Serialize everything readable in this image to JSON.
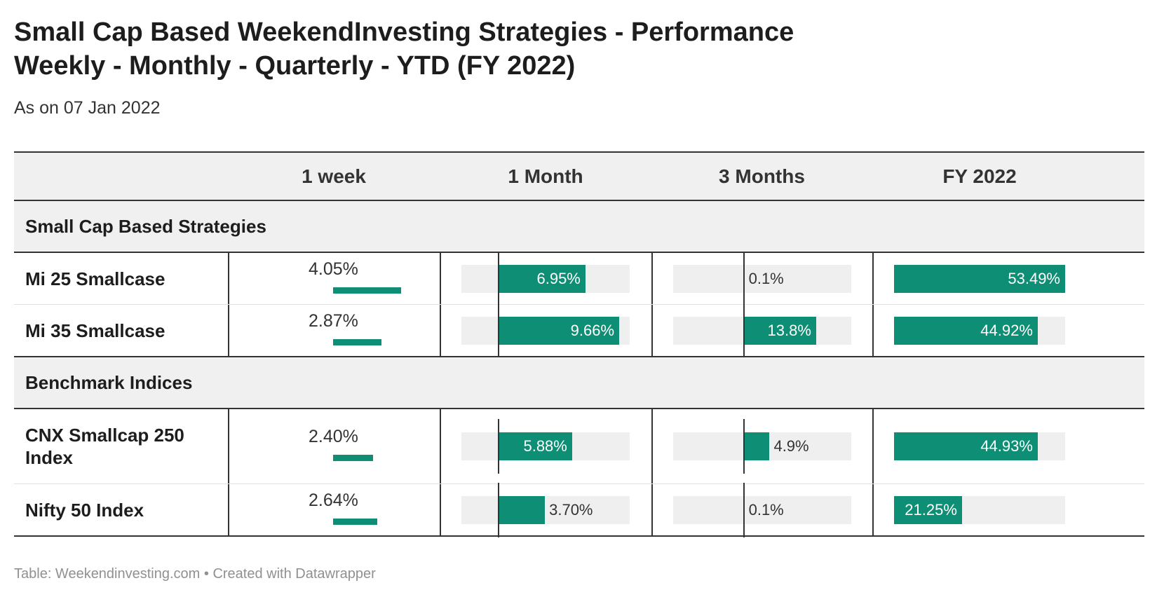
{
  "title_line1": "Small Cap Based WeekendInvesting Strategies - Performance",
  "title_line2": "Weekly - Monthly - Quarterly - YTD (FY 2022)",
  "subtitle": "As on 07 Jan 2022",
  "footer": "Table: Weekendinvesting.com • Created with Datawrapper",
  "colors": {
    "bar": "#0e8f75",
    "track": "#efefef",
    "rule": "#333333",
    "band": "#f0f0f0"
  },
  "chart_data": {
    "type": "table",
    "columns": [
      "",
      "1 week",
      "1 Month",
      "3 Months",
      "FY 2022"
    ],
    "groups": [
      {
        "label": "Small Cap Based Strategies",
        "rows": [
          {
            "name": "Mi 25 Smallcase",
            "week": 4.05,
            "week_label": "4.05%",
            "month": 6.95,
            "month_label": "6.95%",
            "quarter": 0.1,
            "quarter_label": "0.1%",
            "fy": 53.49,
            "fy_label": "53.49%"
          },
          {
            "name": "Mi 35 Smallcase",
            "week": 2.87,
            "week_label": "2.87%",
            "month": 9.66,
            "month_label": "9.66%",
            "quarter": 13.8,
            "quarter_label": "13.8%",
            "fy": 44.92,
            "fy_label": "44.92%"
          }
        ]
      },
      {
        "label": "Benchmark Indices",
        "rows": [
          {
            "name": "CNX Smallcap 250 Index",
            "week": 2.4,
            "week_label": "2.40%",
            "month": 5.88,
            "month_label": "5.88%",
            "quarter": 4.9,
            "quarter_label": "4.9%",
            "fy": 44.93,
            "fy_label": "44.93%"
          },
          {
            "name": "Nifty 50 Index",
            "week": 2.64,
            "week_label": "2.64%",
            "month": 3.7,
            "month_label": "3.70%",
            "quarter": 0.1,
            "quarter_label": "0.1%",
            "fy": 21.25,
            "fy_label": "21.25%"
          }
        ]
      }
    ],
    "bar_ranges": {
      "week": [
        0,
        4.05
      ],
      "month": [
        -3.0,
        10.5
      ],
      "quarter": [
        -13.5,
        20.5
      ],
      "fy": [
        0,
        53.49
      ]
    }
  }
}
